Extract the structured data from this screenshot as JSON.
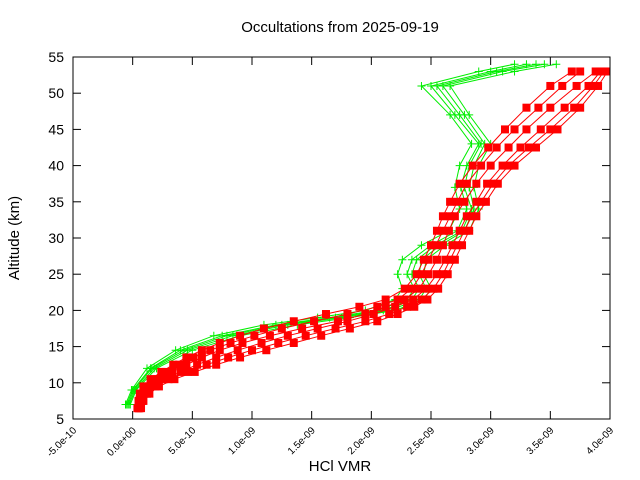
{
  "chart_data": {
    "type": "line",
    "title": "Occultations from 2025-09-19",
    "xlabel": "HCl VMR",
    "ylabel": "Altitude (km)",
    "xlim": [
      -5e-10,
      4e-09
    ],
    "ylim": [
      5,
      55
    ],
    "xticks": [
      {
        "value": -5e-10,
        "label": "-5.0e-10"
      },
      {
        "value": 0,
        "label": "0.0e+00"
      },
      {
        "value": 5e-10,
        "label": "5.0e-10"
      },
      {
        "value": 1e-09,
        "label": "1.0e-09"
      },
      {
        "value": 1.5e-09,
        "label": "1.5e-09"
      },
      {
        "value": 2e-09,
        "label": "2.0e-09"
      },
      {
        "value": 2.5e-09,
        "label": "2.5e-09"
      },
      {
        "value": 3e-09,
        "label": "3.0e-09"
      },
      {
        "value": 3.5e-09,
        "label": "3.5e-09"
      },
      {
        "value": 4e-09,
        "label": "4.0e-09"
      }
    ],
    "yticks": [
      {
        "value": 5,
        "label": "5"
      },
      {
        "value": 10,
        "label": "10"
      },
      {
        "value": 15,
        "label": "15"
      },
      {
        "value": 20,
        "label": "20"
      },
      {
        "value": 25,
        "label": "25"
      },
      {
        "value": 30,
        "label": "30"
      },
      {
        "value": 35,
        "label": "35"
      },
      {
        "value": 40,
        "label": "40"
      },
      {
        "value": 45,
        "label": "45"
      },
      {
        "value": 50,
        "label": "50"
      },
      {
        "value": 55,
        "label": "55"
      }
    ],
    "grid": false,
    "legend": "none",
    "series": [
      {
        "color": "#ff0000",
        "marker": "square",
        "profiles": [
          {
            "x": [
              5e-11,
              6e-11,
              8e-11,
              1.3e-10,
              2.1e-10,
              3.3e-10,
              4.5e-10,
              5.8e-10,
              7.3e-10,
              9.2e-10,
              1.15e-09,
              1.42e-09,
              1.72e-09,
              1.95e-09,
              2.12e-09,
              2.28e-09,
              2.4e-09,
              2.48e-09,
              2.55e-09,
              2.6e-09,
              2.65e-09,
              2.7e-09,
              2.78e-09,
              2.88e-09,
              3e-09,
              3.15e-09,
              3.3e-09,
              3.5e-09,
              3.72e-09,
              3.88e-09
            ],
            "y": [
              6.5,
              7.5,
              8.5,
              9.5,
              10.5,
              11.5,
              12.5,
              13.5,
              14.5,
              15.5,
              16.5,
              17.5,
              18.5,
              19.5,
              20.5,
              21.5,
              23,
              25,
              27,
              29,
              31,
              33,
              35,
              37.5,
              40,
              42.5,
              45,
              48,
              51,
              53
            ]
          },
          {
            "x": [
              5e-11,
              7e-11,
              1e-10,
              1.6e-10,
              2.6e-10,
              4e-10,
              5.4e-10,
              7e-10,
              8.8e-10,
              1.08e-09,
              1.3e-09,
              1.55e-09,
              1.8e-09,
              2.02e-09,
              2.2e-09,
              2.35e-09,
              2.46e-09,
              2.55e-09,
              2.62e-09,
              2.68e-09,
              2.74e-09,
              2.8e-09,
              2.88e-09,
              2.97e-09,
              3.1e-09,
              3.25e-09,
              3.42e-09,
              3.62e-09,
              3.82e-09,
              3.92e-09
            ],
            "y": [
              6.5,
              7.5,
              8.5,
              9.5,
              10.5,
              11.5,
              12.5,
              13.5,
              14.5,
              15.5,
              16.5,
              17.5,
              18.5,
              19.5,
              20.5,
              21.5,
              23,
              25,
              27,
              29,
              31,
              33,
              35,
              37.5,
              40,
              42.5,
              45,
              48,
              51,
              53
            ]
          },
          {
            "x": [
              5e-11,
              5e-11,
              7e-11,
              1.1e-10,
              1.8e-10,
              2.8e-10,
              3.9e-10,
              5.1e-10,
              6.5e-10,
              8.2e-10,
              1.02e-09,
              1.25e-09,
              1.52e-09,
              1.8e-09,
              2.05e-09,
              2.22e-09,
              2.34e-09,
              2.42e-09,
              2.48e-09,
              2.54e-09,
              2.6e-09,
              2.66e-09,
              2.72e-09,
              2.8e-09,
              2.92e-09,
              3.05e-09,
              3.2e-09,
              3.4e-09,
              3.6e-09,
              3.75e-09
            ],
            "y": [
              6.5,
              7.5,
              8.5,
              9.5,
              10.5,
              11.5,
              12.5,
              13.5,
              14.5,
              15.5,
              16.5,
              17.5,
              18.5,
              19.5,
              20.5,
              21.5,
              23,
              25,
              27,
              29,
              31,
              33,
              35,
              37.5,
              40,
              42.5,
              45,
              48,
              51,
              53
            ]
          },
          {
            "x": [
              6e-11,
              8e-11,
              1.2e-10,
              1.9e-10,
              3e-10,
              4.6e-10,
              6.2e-10,
              8e-10,
              1e-09,
              1.22e-09,
              1.45e-09,
              1.7e-09,
              1.95e-09,
              2.15e-09,
              2.3e-09,
              2.42e-09,
              2.52e-09,
              2.6e-09,
              2.66e-09,
              2.72e-09,
              2.78e-09,
              2.84e-09,
              2.92e-09,
              3.02e-09,
              3.15e-09,
              3.32e-09,
              3.5e-09,
              3.7e-09,
              3.86e-09,
              3.95e-09
            ],
            "y": [
              6.5,
              7.5,
              8.5,
              9.5,
              10.5,
              11.5,
              12.5,
              13.5,
              14.5,
              15.5,
              16.5,
              17.5,
              18.5,
              19.5,
              20.5,
              21.5,
              23,
              25,
              27,
              29,
              31,
              33,
              35,
              37.5,
              40,
              42.5,
              45,
              48,
              51,
              53
            ]
          },
          {
            "x": [
              4e-11,
              5e-11,
              6e-11,
              9e-11,
              1.5e-10,
              2.4e-10,
              3.4e-10,
              4.5e-10,
              5.8e-10,
              7.3e-10,
              9e-10,
              1.1e-09,
              1.35e-09,
              1.62e-09,
              1.9e-09,
              2.12e-09,
              2.28e-09,
              2.38e-09,
              2.44e-09,
              2.5e-09,
              2.55e-09,
              2.6e-09,
              2.66e-09,
              2.74e-09,
              2.85e-09,
              2.98e-09,
              3.12e-09,
              3.3e-09,
              3.5e-09,
              3.68e-09
            ],
            "y": [
              6.5,
              7.5,
              8.5,
              9.5,
              10.5,
              11.5,
              12.5,
              13.5,
              14.5,
              15.5,
              16.5,
              17.5,
              18.5,
              19.5,
              20.5,
              21.5,
              23,
              25,
              27,
              29,
              31,
              33,
              35,
              37.5,
              40,
              42.5,
              45,
              48,
              51,
              53
            ]
          },
          {
            "x": [
              7e-11,
              9e-11,
              1.4e-10,
              2.2e-10,
              3.5e-10,
              5.2e-10,
              7e-10,
              9e-10,
              1.12e-09,
              1.35e-09,
              1.58e-09,
              1.82e-09,
              2.05e-09,
              2.22e-09,
              2.36e-09,
              2.47e-09,
              2.56e-09,
              2.64e-09,
              2.7e-09,
              2.76e-09,
              2.82e-09,
              2.88e-09,
              2.96e-09,
              3.06e-09,
              3.2e-09,
              3.38e-09,
              3.56e-09,
              3.75e-09,
              3.9e-09,
              3.98e-09
            ],
            "y": [
              6.5,
              7.5,
              8.5,
              9.5,
              10.5,
              11.5,
              12.5,
              13.5,
              14.5,
              15.5,
              16.5,
              17.5,
              18.5,
              19.5,
              20.5,
              21.5,
              23,
              25,
              27,
              29,
              31,
              33,
              35,
              37.5,
              40,
              42.5,
              45,
              48,
              51,
              53
            ]
          }
        ]
      },
      {
        "color": "#00ee00",
        "marker": "plus",
        "profiles": [
          {
            "x": [
              -5e-11,
              0,
              1.5e-10,
              4e-10,
              7.5e-10,
              1.2e-09,
              1.65e-09,
              2.05e-09,
              2.3e-09,
              2.36e-09,
              2.3e-09,
              2.34e-09,
              2.5e-09,
              2.72e-09,
              2.8e-09,
              2.75e-09,
              2.8e-09,
              2.9e-09,
              2.7e-09,
              2.5e-09,
              3e-09,
              3.3e-09
            ],
            "y": [
              7,
              9,
              12,
              14.5,
              16.5,
              18,
              19,
              20,
              21.5,
              23,
              25,
              27,
              29,
              31,
              34,
              37,
              40,
              43,
              47,
              51,
              53,
              54
            ]
          },
          {
            "x": [
              -3e-11,
              2e-11,
              1.8e-10,
              4.6e-10,
              8.4e-10,
              1.3e-09,
              1.75e-09,
              2.15e-09,
              2.4e-09,
              2.46e-09,
              2.4e-09,
              2.42e-09,
              2.58e-09,
              2.78e-09,
              2.86e-09,
              2.82e-09,
              2.86e-09,
              2.95e-09,
              2.78e-09,
              2.6e-09,
              3.1e-09,
              3.45e-09
            ],
            "y": [
              7,
              9,
              12,
              14.5,
              16.5,
              18,
              19,
              20,
              21.5,
              23,
              25,
              27,
              29,
              31,
              34,
              37,
              40,
              43,
              47,
              51,
              53,
              54
            ]
          },
          {
            "x": [
              -6e-11,
              -1e-11,
              1.2e-10,
              3.6e-10,
              6.8e-10,
              1.1e-09,
              1.55e-09,
              1.95e-09,
              2.2e-09,
              2.26e-09,
              2.22e-09,
              2.26e-09,
              2.42e-09,
              2.65e-09,
              2.74e-09,
              2.7e-09,
              2.74e-09,
              2.84e-09,
              2.66e-09,
              2.42e-09,
              2.9e-09,
              3.2e-09
            ],
            "y": [
              7,
              9,
              12,
              14.5,
              16.5,
              18,
              19,
              20,
              21.5,
              23,
              25,
              27,
              29,
              31,
              34,
              37,
              40,
              43,
              47,
              51,
              53,
              54
            ]
          },
          {
            "x": [
              -2e-11,
              3e-11,
              2e-10,
              5e-10,
              9e-10,
              1.38e-09,
              1.82e-09,
              2.2e-09,
              2.44e-09,
              2.5e-09,
              2.44e-09,
              2.46e-09,
              2.62e-09,
              2.82e-09,
              2.9e-09,
              2.86e-09,
              2.9e-09,
              3e-09,
              2.82e-09,
              2.66e-09,
              3.2e-09,
              3.55e-09
            ],
            "y": [
              7,
              9,
              12,
              14.5,
              16.5,
              18,
              19,
              20,
              21.5,
              23,
              25,
              27,
              29,
              31,
              34,
              37,
              40,
              43,
              47,
              51,
              53,
              54
            ]
          },
          {
            "x": [
              -4e-11,
              1e-11,
              1.6e-10,
              4.3e-10,
              7.9e-10,
              1.25e-09,
              1.7e-09,
              2.1e-09,
              2.34e-09,
              2.4e-09,
              2.34e-09,
              2.38e-09,
              2.54e-09,
              2.76e-09,
              2.84e-09,
              2.78e-09,
              2.82e-09,
              2.92e-09,
              2.74e-09,
              2.55e-09,
              3.05e-09,
              3.38e-09
            ],
            "y": [
              7,
              9,
              12,
              14.5,
              16.5,
              18,
              19,
              20,
              21.5,
              23,
              25,
              27,
              29,
              31,
              34,
              37,
              40,
              43,
              47,
              51,
              53,
              54
            ]
          }
        ]
      }
    ]
  }
}
